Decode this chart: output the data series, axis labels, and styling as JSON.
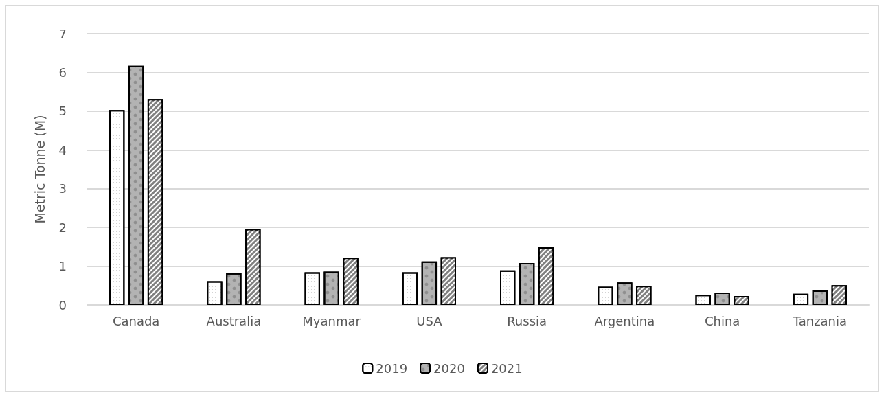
{
  "chart_data": {
    "type": "bar",
    "ylabel": "Metric Tonne (M)",
    "categories": [
      "Canada",
      "Australia",
      "Myanmar",
      "USA",
      "Russia",
      "Argentina",
      "China",
      "Tanzania"
    ],
    "series": [
      {
        "name": "2019",
        "color": "#ffffff",
        "values": [
          5.03,
          0.61,
          0.84,
          0.84,
          0.89,
          0.47,
          0.26,
          0.29
        ]
      },
      {
        "name": "2020",
        "color": "#b3b3b3",
        "values": [
          6.17,
          0.82,
          0.86,
          1.12,
          1.08,
          0.58,
          0.32,
          0.37
        ]
      },
      {
        "name": "2021",
        "color": "#808080",
        "values": [
          5.31,
          1.96,
          1.22,
          1.23,
          1.49,
          0.49,
          0.23,
          0.51
        ]
      }
    ],
    "ylim": [
      0,
      7
    ],
    "yticks": [
      0,
      1,
      2,
      3,
      4,
      5,
      6,
      7
    ],
    "grid": "y",
    "legend": "bottom"
  }
}
